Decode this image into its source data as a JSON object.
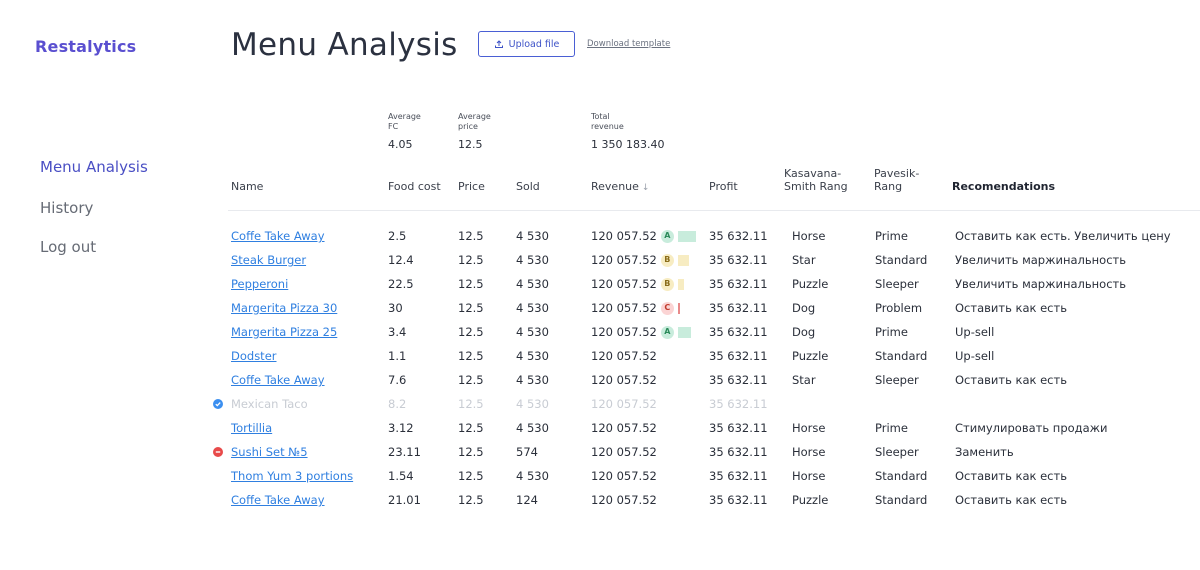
{
  "app": {
    "logo": "Restalytics"
  },
  "header": {
    "title": "Menu Analysis",
    "upload_label": "Upload file",
    "download_label": "Download template"
  },
  "nav": {
    "items": [
      {
        "label": "Menu Analysis",
        "active": true
      },
      {
        "label": "History",
        "active": false
      },
      {
        "label": "Log out",
        "active": false
      }
    ]
  },
  "stats": {
    "avg_fc_label": "Average FC",
    "avg_fc_value": "4.05",
    "avg_price_label": "Average price",
    "avg_price_value": "12.5",
    "total_revenue_label": "Total revenue",
    "total_revenue_value": "1 350 183.40"
  },
  "table": {
    "columns": {
      "name": "Name",
      "food_cost": "Food cost",
      "price": "Price",
      "sold": "Sold",
      "revenue": "Revenue",
      "profit": "Profit",
      "kasavana": "Kasavana-Smith Rang",
      "pavesik": "Pavesik-Rang",
      "recommendations": "Recomendations"
    },
    "rows": [
      {
        "name": "Coffe Take Away",
        "food_cost": "2.5",
        "price": "12.5",
        "sold": "4 530",
        "revenue": "120 057.52",
        "grade": "A",
        "bar": 0.9,
        "profit": "35 632.11",
        "kasavana": "Horse",
        "pavesik": "Prime",
        "rec": "Оставить как есть. Увеличить цену"
      },
      {
        "name": "Steak Burger",
        "food_cost": "12.4",
        "price": "12.5",
        "sold": "4 530",
        "revenue": "120 057.52",
        "grade": "B",
        "bar": 0.55,
        "profit": "35 632.11",
        "kasavana": "Star",
        "pavesik": "Standard",
        "rec": "Увеличить маржинальность"
      },
      {
        "name": "Pepperoni",
        "food_cost": "22.5",
        "price": "12.5",
        "sold": "4 530",
        "revenue": "120 057.52",
        "grade": "B",
        "bar": 0.3,
        "profit": "35 632.11",
        "kasavana": "Puzzle",
        "pavesik": "Sleeper",
        "rec": "Увеличить маржинальность"
      },
      {
        "name": "Margerita Pizza 30",
        "food_cost": "30",
        "price": "12.5",
        "sold": "4 530",
        "revenue": "120 057.52",
        "grade": "C",
        "bar": 0.1,
        "profit": "35 632.11",
        "kasavana": "Dog",
        "pavesik": "Problem",
        "rec": "Оставить как есть"
      },
      {
        "name": "Margerita Pizza 25",
        "food_cost": "3.4",
        "price": "12.5",
        "sold": "4 530",
        "revenue": "120 057.52",
        "grade": "A",
        "bar": 0.65,
        "profit": "35 632.11",
        "kasavana": "Dog",
        "pavesik": "Prime",
        "rec": "Up-sell"
      },
      {
        "name": "Dodster",
        "food_cost": "1.1",
        "price": "12.5",
        "sold": "4 530",
        "revenue": "120 057.52",
        "profit": "35 632.11",
        "kasavana": "Puzzle",
        "pavesik": "Standard",
        "rec": "Up-sell"
      },
      {
        "name": "Coffe Take Away",
        "food_cost": "7.6",
        "price": "12.5",
        "sold": "4 530",
        "revenue": "120 057.52",
        "profit": "35 632.11",
        "kasavana": "Star",
        "pavesik": "Sleeper",
        "rec": "Оставить как есть"
      },
      {
        "name": "Mexican Taco",
        "food_cost": "8.2",
        "price": "12.5",
        "sold": "4 530",
        "revenue": "120 057.52",
        "profit": "35 632.11",
        "kasavana": "",
        "pavesik": "",
        "rec": "",
        "dim": true,
        "icon": "check"
      },
      {
        "name": "Tortillia",
        "food_cost": "3.12",
        "price": "12.5",
        "sold": "4 530",
        "revenue": "120 057.52",
        "profit": "35 632.11",
        "kasavana": "Horse",
        "pavesik": "Prime",
        "rec": "Стимулировать продажи"
      },
      {
        "name": "Sushi Set №5",
        "food_cost": "23.11",
        "price": "12.5",
        "sold": "574",
        "revenue": "120 057.52",
        "profit": "35 632.11",
        "kasavana": "Horse",
        "pavesik": "Sleeper",
        "rec": "Заменить",
        "icon": "minus"
      },
      {
        "name": "Thom Yum 3 portions",
        "food_cost": "1.54",
        "price": "12.5",
        "sold": "4 530",
        "revenue": "120 057.52",
        "profit": "35 632.11",
        "kasavana": "Horse",
        "pavesik": "Standard",
        "rec": "Оставить как есть"
      },
      {
        "name": "Coffe Take Away",
        "food_cost": "21.01",
        "price": "12.5",
        "sold": "124",
        "revenue": "120 057.52",
        "profit": "35 632.11",
        "kasavana": "Puzzle",
        "pavesik": "Standard",
        "rec": "Оставить как есть"
      }
    ]
  },
  "colors": {
    "accent": "#5a4fd0",
    "link": "#2f7fe0",
    "grade_A": "#c8ecdc",
    "grade_B": "#f7ecc2",
    "grade_C": "#fbd4d4",
    "check_icon": "#3b8ff0",
    "minus_icon": "#e84a4a"
  }
}
